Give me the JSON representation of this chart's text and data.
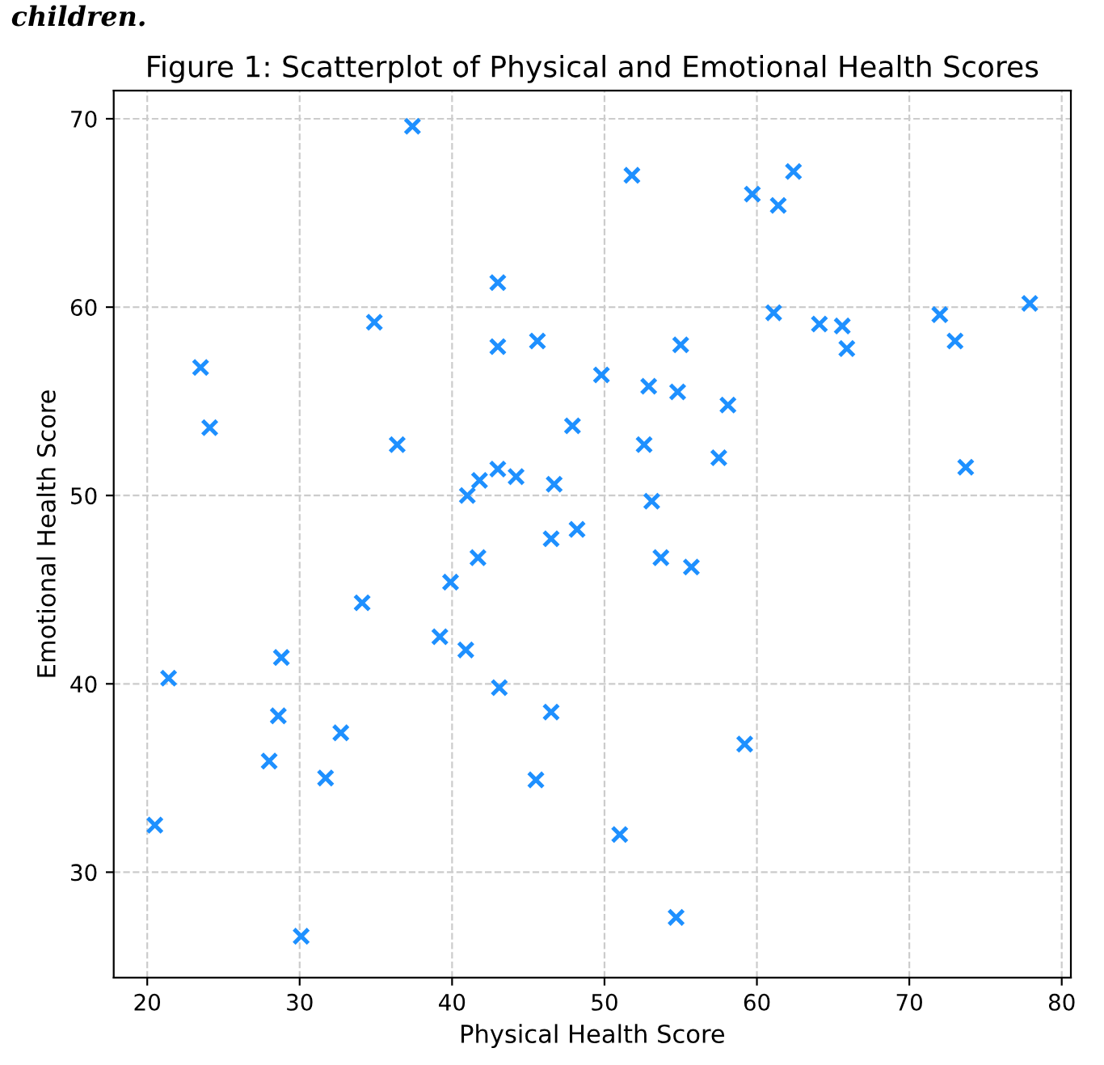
{
  "chart_data": {
    "type": "scatter",
    "title": "Figure 1: Scatterplot of Physical and Emotional Health Scores",
    "xlabel": "Physical Health Score",
    "ylabel": "Emotional Health Score",
    "annotations": [
      "children."
    ],
    "x": [
      21.4,
      20.5,
      23.5,
      24.1,
      28.0,
      28.6,
      28.8,
      30.1,
      31.7,
      32.7,
      34.1,
      34.9,
      36.4,
      37.4,
      39.9,
      39.2,
      40.9,
      41.0,
      41.7,
      41.8,
      43.0,
      43.0,
      43.0,
      43.1,
      44.2,
      45.5,
      45.6,
      46.5,
      46.5,
      46.7,
      47.9,
      48.2,
      49.8,
      51.0,
      51.8,
      52.6,
      52.9,
      53.1,
      53.7,
      54.8,
      55.0,
      54.7,
      55.7,
      57.5,
      58.1,
      59.2,
      59.7,
      61.1,
      61.4,
      62.4,
      64.1,
      65.6,
      65.9,
      72.0,
      73.0,
      73.7,
      77.9
    ],
    "series": [
      {
        "color": "#1e90ff",
        "values": [
          40.3,
          32.5,
          56.8,
          53.6,
          35.9,
          38.3,
          41.4,
          26.6,
          35.0,
          37.4,
          44.3,
          59.2,
          52.7,
          69.6,
          45.4,
          42.5,
          41.8,
          50.0,
          46.7,
          50.8,
          61.3,
          51.4,
          57.9,
          39.8,
          51.0,
          34.9,
          58.2,
          47.7,
          38.5,
          50.6,
          53.7,
          48.2,
          56.4,
          32.0,
          67.0,
          52.7,
          55.8,
          49.7,
          46.7,
          55.5,
          58.0,
          27.6,
          46.2,
          52.0,
          54.8,
          36.8,
          66.0,
          59.7,
          65.4,
          67.2,
          59.1,
          59.0,
          57.8,
          59.6,
          58.2,
          51.5,
          60.2
        ]
      }
    ],
    "xlim": [
      17.8,
      80.6
    ],
    "ylim": [
      24.4,
      71.5
    ],
    "xticks": [
      20,
      30,
      40,
      50,
      60,
      70,
      80
    ],
    "yticks": [
      30,
      40,
      50,
      60,
      70
    ],
    "grid": true,
    "marker": "cross"
  }
}
